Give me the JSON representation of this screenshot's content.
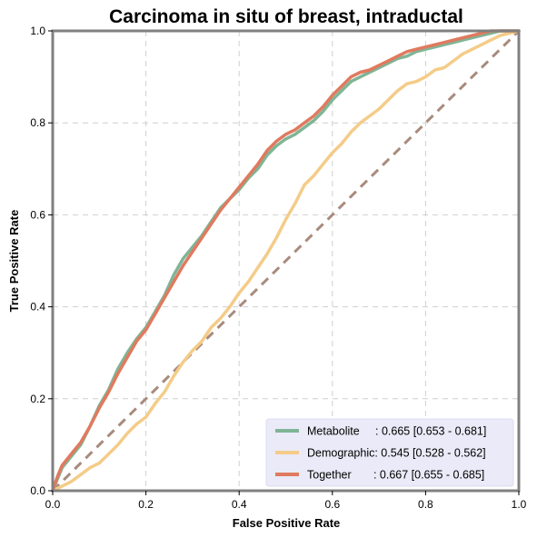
{
  "chart_data": {
    "type": "line",
    "title": "Carcinoma in situ of breast, intraductal",
    "xlabel": "False Positive Rate",
    "ylabel": "True Positive Rate",
    "xlim": [
      0,
      1
    ],
    "ylim": [
      0,
      1
    ],
    "xticks": [
      "0.0",
      "0.2",
      "0.4",
      "0.6",
      "0.8",
      "1.0"
    ],
    "yticks": [
      "0.0",
      "0.2",
      "0.4",
      "0.6",
      "0.8",
      "1.0"
    ],
    "grid": true,
    "legend_position": "bottom-right",
    "series": [
      {
        "name": "Metabolite",
        "legend_label": "Metabolite     : 0.665 [0.653 - 0.681]",
        "color": "#7fb596",
        "x": [
          0,
          0.01,
          0.02,
          0.04,
          0.06,
          0.08,
          0.1,
          0.12,
          0.14,
          0.16,
          0.18,
          0.2,
          0.22,
          0.24,
          0.26,
          0.28,
          0.3,
          0.32,
          0.34,
          0.36,
          0.38,
          0.4,
          0.42,
          0.44,
          0.46,
          0.48,
          0.5,
          0.52,
          0.54,
          0.56,
          0.58,
          0.6,
          0.62,
          0.64,
          0.66,
          0.68,
          0.7,
          0.72,
          0.74,
          0.76,
          0.78,
          0.8,
          0.82,
          0.84,
          0.86,
          0.88,
          0.9,
          0.92,
          0.94,
          0.96,
          0.98,
          1.0
        ],
        "y": [
          0,
          0.025,
          0.05,
          0.075,
          0.1,
          0.14,
          0.185,
          0.22,
          0.265,
          0.3,
          0.33,
          0.355,
          0.39,
          0.425,
          0.47,
          0.505,
          0.53,
          0.555,
          0.585,
          0.615,
          0.635,
          0.655,
          0.68,
          0.7,
          0.73,
          0.75,
          0.765,
          0.775,
          0.79,
          0.805,
          0.825,
          0.85,
          0.87,
          0.89,
          0.9,
          0.91,
          0.92,
          0.93,
          0.94,
          0.945,
          0.955,
          0.96,
          0.965,
          0.97,
          0.975,
          0.98,
          0.985,
          0.99,
          0.995,
          1.0,
          1.0,
          1.0
        ]
      },
      {
        "name": "Demographic",
        "legend_label": "Demographic: 0.545 [0.528 - 0.562]",
        "color": "#f4cc88",
        "x": [
          0,
          0.02,
          0.04,
          0.06,
          0.08,
          0.1,
          0.12,
          0.14,
          0.16,
          0.18,
          0.2,
          0.22,
          0.24,
          0.26,
          0.28,
          0.3,
          0.32,
          0.34,
          0.36,
          0.38,
          0.4,
          0.42,
          0.44,
          0.46,
          0.48,
          0.5,
          0.52,
          0.54,
          0.56,
          0.58,
          0.6,
          0.62,
          0.64,
          0.66,
          0.68,
          0.7,
          0.72,
          0.74,
          0.76,
          0.78,
          0.8,
          0.82,
          0.84,
          0.86,
          0.88,
          0.9,
          0.92,
          0.94,
          0.96,
          0.98,
          1.0
        ],
        "y": [
          0,
          0.01,
          0.02,
          0.035,
          0.05,
          0.06,
          0.08,
          0.1,
          0.125,
          0.145,
          0.16,
          0.19,
          0.215,
          0.25,
          0.28,
          0.305,
          0.325,
          0.355,
          0.375,
          0.4,
          0.43,
          0.455,
          0.485,
          0.515,
          0.55,
          0.59,
          0.625,
          0.665,
          0.685,
          0.71,
          0.735,
          0.755,
          0.78,
          0.8,
          0.815,
          0.83,
          0.85,
          0.87,
          0.885,
          0.89,
          0.9,
          0.915,
          0.92,
          0.935,
          0.95,
          0.96,
          0.97,
          0.98,
          0.99,
          0.995,
          1.0
        ]
      },
      {
        "name": "Together",
        "legend_label": "Together       : 0.667 [0.655 - 0.685]",
        "color": "#e07a5f",
        "x": [
          0,
          0.01,
          0.02,
          0.04,
          0.06,
          0.08,
          0.1,
          0.12,
          0.14,
          0.16,
          0.18,
          0.2,
          0.22,
          0.24,
          0.26,
          0.28,
          0.3,
          0.32,
          0.34,
          0.36,
          0.38,
          0.4,
          0.42,
          0.44,
          0.46,
          0.48,
          0.5,
          0.52,
          0.54,
          0.56,
          0.58,
          0.6,
          0.62,
          0.64,
          0.66,
          0.68,
          0.7,
          0.72,
          0.74,
          0.76,
          0.78,
          0.8,
          0.82,
          0.84,
          0.86,
          0.88,
          0.9,
          0.92,
          0.94,
          0.96,
          0.98,
          1.0
        ],
        "y": [
          0,
          0.03,
          0.055,
          0.08,
          0.105,
          0.14,
          0.18,
          0.215,
          0.255,
          0.29,
          0.325,
          0.35,
          0.385,
          0.42,
          0.455,
          0.49,
          0.52,
          0.55,
          0.58,
          0.61,
          0.635,
          0.66,
          0.685,
          0.71,
          0.74,
          0.76,
          0.775,
          0.785,
          0.8,
          0.815,
          0.835,
          0.86,
          0.88,
          0.9,
          0.91,
          0.915,
          0.925,
          0.935,
          0.945,
          0.955,
          0.96,
          0.965,
          0.97,
          0.975,
          0.98,
          0.985,
          0.99,
          0.995,
          1.0,
          1.0,
          1.0,
          1.0
        ]
      }
    ],
    "reference_line": {
      "color": "#a88b7d",
      "x": [
        0,
        1
      ],
      "y": [
        0,
        1
      ]
    }
  }
}
